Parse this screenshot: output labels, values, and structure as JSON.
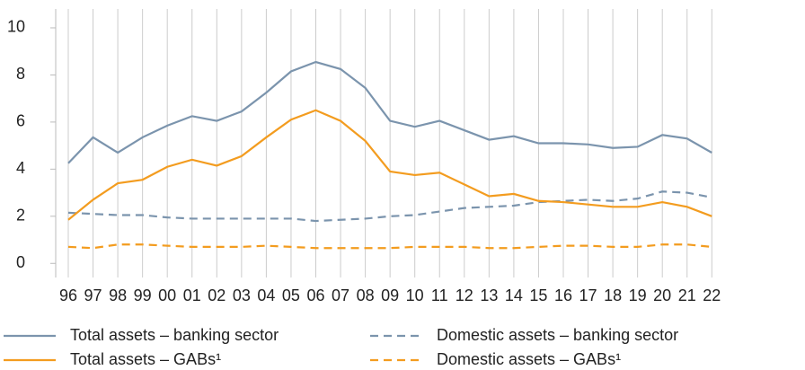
{
  "chart_data": {
    "type": "line",
    "categories": [
      "96",
      "97",
      "98",
      "99",
      "00",
      "01",
      "02",
      "03",
      "04",
      "05",
      "06",
      "07",
      "08",
      "09",
      "10",
      "11",
      "12",
      "13",
      "14",
      "15",
      "16",
      "17",
      "18",
      "19",
      "20",
      "21",
      "22"
    ],
    "series": [
      {
        "name": "Total assets – banking sector",
        "color": "#7b94ad",
        "dash": false,
        "values": [
          4.25,
          5.35,
          4.7,
          5.35,
          5.85,
          6.25,
          6.05,
          6.45,
          7.25,
          8.15,
          8.55,
          8.25,
          7.45,
          6.05,
          5.8,
          6.05,
          5.65,
          5.25,
          5.4,
          5.1,
          5.1,
          5.05,
          4.9,
          4.95,
          5.45,
          5.3,
          4.7
        ]
      },
      {
        "name": "Domestic assets – banking sector",
        "color": "#7b94ad",
        "dash": true,
        "values": [
          2.15,
          2.1,
          2.05,
          2.05,
          1.95,
          1.9,
          1.9,
          1.9,
          1.9,
          1.9,
          1.8,
          1.85,
          1.9,
          2.0,
          2.05,
          2.2,
          2.35,
          2.4,
          2.45,
          2.6,
          2.65,
          2.7,
          2.65,
          2.75,
          3.05,
          3.0,
          2.8
        ]
      },
      {
        "name": "Total assets – GABs¹",
        "color": "#f39c1f",
        "dash": false,
        "values": [
          1.85,
          2.7,
          3.4,
          3.55,
          4.1,
          4.4,
          4.15,
          4.55,
          5.35,
          6.1,
          6.5,
          6.05,
          5.2,
          3.9,
          3.75,
          3.85,
          3.35,
          2.85,
          2.95,
          2.65,
          2.6,
          2.5,
          2.4,
          2.4,
          2.6,
          2.4,
          2.0
        ]
      },
      {
        "name": "Domestic assets – GABs¹",
        "color": "#f39c1f",
        "dash": true,
        "values": [
          0.7,
          0.65,
          0.8,
          0.8,
          0.75,
          0.7,
          0.7,
          0.7,
          0.75,
          0.7,
          0.65,
          0.65,
          0.65,
          0.65,
          0.7,
          0.7,
          0.7,
          0.65,
          0.65,
          0.7,
          0.75,
          0.75,
          0.7,
          0.7,
          0.8,
          0.8,
          0.7
        ]
      }
    ],
    "ylim": [
      -0.6,
      10.8
    ],
    "yticks": [
      0,
      2,
      4,
      6,
      8,
      10
    ],
    "grid": true
  }
}
